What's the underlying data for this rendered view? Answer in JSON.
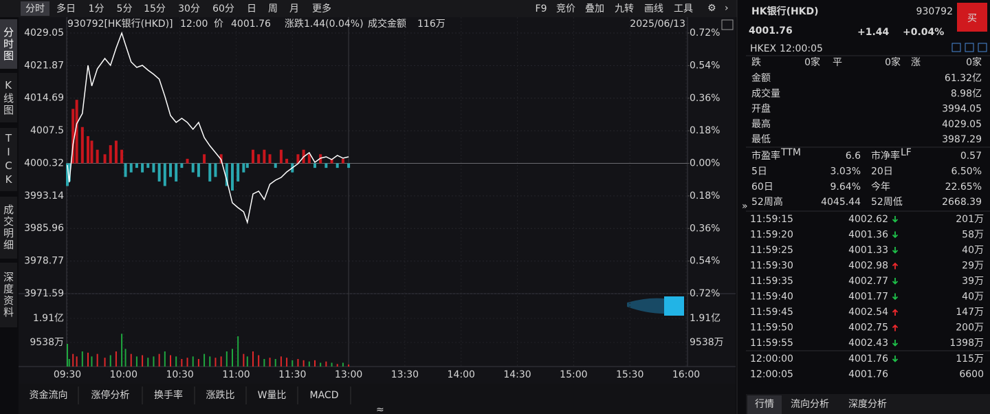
{
  "toolbar": {
    "periods": [
      "分时",
      "多日",
      "1分",
      "5分",
      "15分",
      "30分",
      "60分",
      "日",
      "周",
      "月",
      "更多"
    ],
    "tools": [
      "F9",
      "竞价",
      "叠加",
      "九转",
      "画线",
      "工具"
    ]
  },
  "side_tabs": [
    "分时图",
    "K线图",
    "TICK",
    "成交明细",
    "深度资料"
  ],
  "bottom_tabs": [
    "资金流向",
    "涨停分析",
    "换手率",
    "涨跌比",
    "W量比",
    "MACD"
  ],
  "chart_data": {
    "type": "line",
    "header": [
      "930792[HK银行(HKD)]",
      "12:00",
      "价",
      "4001.76",
      "涨跌",
      "1.44(0.04%)",
      "成交金额",
      "116万"
    ],
    "date": "2025/06/13",
    "xticks": [
      "09:30",
      "10:00",
      "10:30",
      "11:00",
      "11:30",
      "13:00",
      "13:30",
      "14:00",
      "14:30",
      "15:00",
      "15:30",
      "16:00"
    ],
    "x": [
      "09:30",
      "09:31",
      "09:33",
      "09:35",
      "09:38",
      "09:41",
      "09:43",
      "09:46",
      "09:50",
      "09:53",
      "09:56",
      "09:59",
      "10:01",
      "10:04",
      "10:07",
      "10:10",
      "10:13",
      "10:16",
      "10:19",
      "10:22",
      "10:25",
      "10:28",
      "10:31",
      "10:34",
      "10:37",
      "10:40",
      "10:43",
      "10:46",
      "10:49",
      "10:52",
      "10:55",
      "10:58",
      "11:01",
      "11:04",
      "11:06",
      "11:09",
      "11:12",
      "11:15",
      "11:18",
      "11:21",
      "11:24",
      "11:27",
      "11:30",
      "11:33",
      "11:36",
      "11:39",
      "11:42",
      "11:45",
      "11:48",
      "11:51",
      "11:54",
      "11:57",
      "12:00"
    ],
    "series": [
      {
        "color": "#ffffff",
        "values": [
          3999.94,
          3996.15,
          4004.49,
          4009.04,
          4011.31,
          4021.92,
          4017.38,
          4021.17,
          4023.44,
          4021.92,
          4025.71,
          4029.05,
          4026.47,
          4022.68,
          4021.47,
          4021.92,
          4020.86,
          4019.95,
          4018.89,
          4015.1,
          4010.86,
          4009.34,
          4010.25,
          4009.34,
          4007.83,
          4009.34,
          4006.01,
          4004.19,
          4002.67,
          4001.16,
          3996.61,
          3991.6,
          3990.54,
          3989.63,
          3987.29,
          3993.58,
          3994.18,
          3992.36,
          3995.7,
          3996.61,
          3997.21,
          3998.43,
          3999.34,
          4000.25,
          4001.76,
          4002.67,
          4000.55,
          4001.46,
          4001.76,
          4001.16,
          4002.07,
          4001.46,
          4001.76
        ]
      }
    ],
    "bars": {
      "up_color": "#c8161d",
      "down_color": "#2aa8b0",
      "values": [
        -5,
        -4,
        12,
        14,
        8,
        6,
        5,
        3,
        2,
        4,
        5,
        3,
        -3,
        -2,
        -1,
        -2,
        -1,
        -2,
        -4,
        -5,
        -3,
        -4,
        -1,
        1,
        -2,
        -3,
        2,
        -4,
        -3,
        2,
        -5,
        -6,
        -4,
        -2,
        -1,
        3,
        2,
        3,
        2,
        -1,
        3,
        1,
        -2,
        2,
        3,
        2,
        -1,
        2,
        -1,
        1,
        -1,
        1,
        -1
      ]
    },
    "ylim": [
      3971.59,
      4029.05
    ],
    "yticks": [
      4029.05,
      4021.87,
      4014.69,
      4007.5,
      4000.32,
      3993.14,
      3985.96,
      3978.77,
      3971.59
    ],
    "y2lim": [
      -0.72,
      0.72
    ],
    "y2ticks": [
      {
        "value": 0.72,
        "label": "0.72%"
      },
      {
        "value": 0.54,
        "label": "0.54%"
      },
      {
        "value": 0.36,
        "label": "0.36%"
      },
      {
        "value": 0.18,
        "label": "0.18%"
      },
      {
        "value": 0,
        "label": "0.00%"
      },
      {
        "value": -0.18,
        "label": "0.18%"
      },
      {
        "value": -0.36,
        "label": "0.36%"
      },
      {
        "value": -0.54,
        "label": "0.54%"
      },
      {
        "value": -0.72,
        "label": "0.72%"
      }
    ],
    "grid": true,
    "volume": {
      "ylim": [
        0,
        28900
      ],
      "yticks": [
        {
          "value": 19100,
          "label": "1.91亿"
        },
        {
          "value": 9538,
          "label": "9538万"
        }
      ],
      "values": [
        9000,
        3000,
        5000,
        4000,
        6000,
        5500,
        4000,
        5000,
        3500,
        4500,
        6000,
        13000,
        7000,
        5000,
        4000,
        4500,
        3500,
        4000,
        5000,
        6000,
        4500,
        4000,
        3000,
        3500,
        4000,
        3000,
        5000,
        4000,
        3500,
        4000,
        6000,
        7000,
        12000,
        5000,
        4000,
        6000,
        4500,
        3000,
        3500,
        3000,
        4000,
        3500,
        2500,
        3000,
        2500,
        2000,
        2500,
        1500,
        2000,
        1500,
        1000,
        1500,
        800
      ],
      "colors": [
        "#1fa83f",
        "#1fa83f",
        "#e0292a",
        "#e0292a",
        "#1fa83f",
        "#e0292a",
        "#1fa83f",
        "#e0292a",
        "#e0292a",
        "#1fa83f",
        "#e0292a",
        "#1fa83f",
        "#1fa83f",
        "#e0292a",
        "#1fa83f",
        "#e0292a",
        "#1fa83f",
        "#1fa83f",
        "#e0292a",
        "#1fa83f",
        "#e0292a",
        "#1fa83f",
        "#e0292a",
        "#e0292a",
        "#1fa83f",
        "#e0292a",
        "#1fa83f",
        "#1fa83f",
        "#e0292a",
        "#e0292a",
        "#1fa83f",
        "#1fa83f",
        "#1fa83f",
        "#e0292a",
        "#1fa83f",
        "#e0292a",
        "#e0292a",
        "#1fa83f",
        "#e0292a",
        "#1fa83f",
        "#e0292a",
        "#e0292a",
        "#1fa83f",
        "#e0292a",
        "#e0292a",
        "#1fa83f",
        "#e0292a",
        "#1fa83f",
        "#e0292a",
        "#1fa83f",
        "#e0292a",
        "#1fa83f",
        "#e0292a"
      ]
    }
  },
  "quote": {
    "name": "HK银行(HKD)",
    "code": "930792",
    "buy": "买",
    "price": "4001.76",
    "change": "+1.44",
    "pct": "+0.04%",
    "market": "HKEX",
    "time": "12:00:05",
    "breadth": [
      {
        "label": "跌",
        "value": "0家"
      },
      {
        "label": "平",
        "value": "0家"
      },
      {
        "label": "涨",
        "value": "0家"
      }
    ],
    "stats": [
      {
        "label": "金额",
        "value": "61.32亿"
      },
      {
        "label": "成交量",
        "value": "8.98亿"
      },
      {
        "label": "开盘",
        "value": "3994.05"
      },
      {
        "label": "最高",
        "value": "4029.05"
      },
      {
        "label": "最低",
        "value": "3987.29"
      }
    ],
    "pairs": [
      [
        {
          "label": "市盈率",
          "sup": "TTM",
          "value": "6.6"
        },
        {
          "label": "市净率",
          "sup": "LF",
          "value": "0.57"
        }
      ],
      [
        {
          "label": "5日",
          "value": "3.03%"
        },
        {
          "label": "20日",
          "value": "6.50%"
        }
      ],
      [
        {
          "label": "60日",
          "value": "9.64%"
        },
        {
          "label": "今年",
          "value": "22.65%"
        }
      ],
      [
        {
          "label": "52周高",
          "value": "4045.44"
        },
        {
          "label": "52周低",
          "value": "2668.39"
        }
      ]
    ],
    "trades": [
      {
        "time": "11:59:15",
        "price": "4002.62",
        "dir": "down",
        "vol": "201万"
      },
      {
        "time": "11:59:20",
        "price": "4001.36",
        "dir": "down",
        "vol": "58万"
      },
      {
        "time": "11:59:25",
        "price": "4001.33",
        "dir": "down",
        "vol": "40万"
      },
      {
        "time": "11:59:30",
        "price": "4002.98",
        "dir": "up",
        "vol": "29万"
      },
      {
        "time": "11:59:35",
        "price": "4002.77",
        "dir": "down",
        "vol": "39万"
      },
      {
        "time": "11:59:40",
        "price": "4001.77",
        "dir": "down",
        "vol": "40万"
      },
      {
        "time": "11:59:45",
        "price": "4002.54",
        "dir": "up",
        "vol": "147万"
      },
      {
        "time": "11:59:50",
        "price": "4002.75",
        "dir": "up",
        "vol": "200万"
      },
      {
        "time": "11:59:55",
        "price": "4002.43",
        "dir": "down",
        "vol": "1398万"
      },
      {
        "time": "12:00:00",
        "price": "4001.76",
        "dir": "down",
        "vol": "115万"
      },
      {
        "time": "12:00:05",
        "price": "4001.76",
        "vol": "6600"
      }
    ],
    "tabs": [
      "行情",
      "流向分析",
      "深度分析"
    ]
  }
}
